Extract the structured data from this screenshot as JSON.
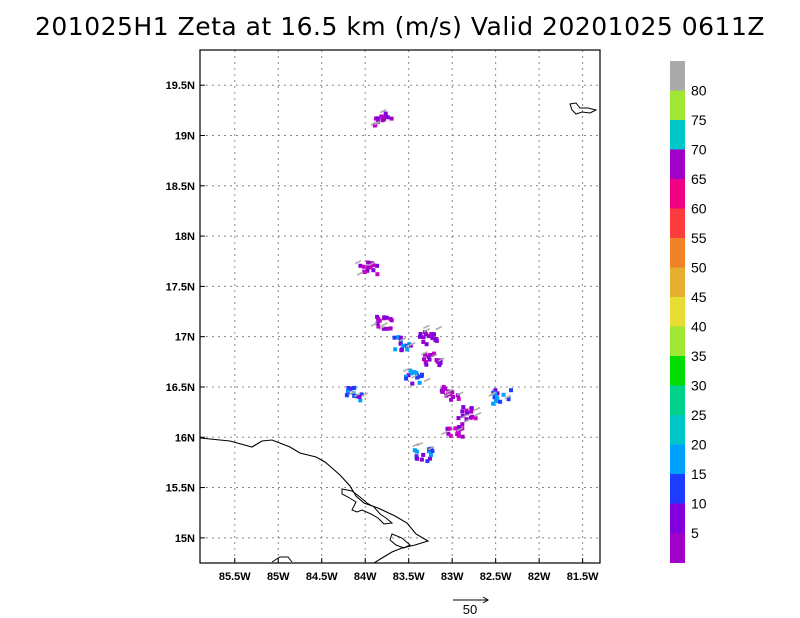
{
  "title": "201025H1  Zeta at 16.5 km (m/s) Valid 20201025  0611Z",
  "map": {
    "lon_range": [
      -85.9,
      -81.3
    ],
    "lat_range": [
      14.75,
      19.85
    ],
    "lon_ticks": [
      -85.5,
      -85,
      -84.5,
      -84,
      -83.5,
      -83,
      -82.5,
      -82,
      -81.5
    ],
    "lon_tick_labels": [
      "85.5W",
      "85W",
      "84.5W",
      "84W",
      "83.5W",
      "83W",
      "82.5W",
      "82W",
      "81.5W"
    ],
    "lat_ticks": [
      15,
      15.5,
      16,
      16.5,
      17,
      17.5,
      18,
      18.5,
      19,
      19.5
    ],
    "lat_tick_labels": [
      "15N",
      "15.5N",
      "16N",
      "16.5N",
      "17N",
      "17.5N",
      "18N",
      "18.5N",
      "19N",
      "19.5N"
    ],
    "grid": true
  },
  "colorbar": {
    "labels": [
      "5",
      "10",
      "15",
      "20",
      "25",
      "30",
      "35",
      "40",
      "45",
      "50",
      "55",
      "60",
      "65",
      "70",
      "75",
      "80"
    ],
    "colors": [
      "#a000c8",
      "#8200dc",
      "#1e3cff",
      "#00a0ff",
      "#00c8c8",
      "#00d28c",
      "#00dc00",
      "#a0e632",
      "#e6dc32",
      "#e6af2d",
      "#f08228",
      "#fa3c3c",
      "#f00082",
      "#a000c8",
      "#00c8c8",
      "#a0e632",
      "#aaaaaa"
    ]
  },
  "vector_scale": {
    "label": "50"
  },
  "zeta_patches": [
    {
      "lon": -83.82,
      "lat": 19.18,
      "level": "purple"
    },
    {
      "lon": -83.98,
      "lat": 17.7,
      "level": "purple"
    },
    {
      "lon": -83.8,
      "lat": 17.15,
      "level": "purple"
    },
    {
      "lon": -83.6,
      "lat": 16.95,
      "level": "blue"
    },
    {
      "lon": -83.3,
      "lat": 17.0,
      "level": "purple"
    },
    {
      "lon": -83.25,
      "lat": 16.8,
      "level": "purple"
    },
    {
      "lon": -83.45,
      "lat": 16.62,
      "level": "blue"
    },
    {
      "lon": -83.05,
      "lat": 16.45,
      "level": "purple"
    },
    {
      "lon": -82.85,
      "lat": 16.25,
      "level": "purple"
    },
    {
      "lon": -82.45,
      "lat": 16.42,
      "level": "blue"
    },
    {
      "lon": -83.0,
      "lat": 16.08,
      "level": "purple"
    },
    {
      "lon": -84.15,
      "lat": 16.45,
      "level": "blue"
    },
    {
      "lon": -83.35,
      "lat": 15.85,
      "level": "blue"
    }
  ]
}
